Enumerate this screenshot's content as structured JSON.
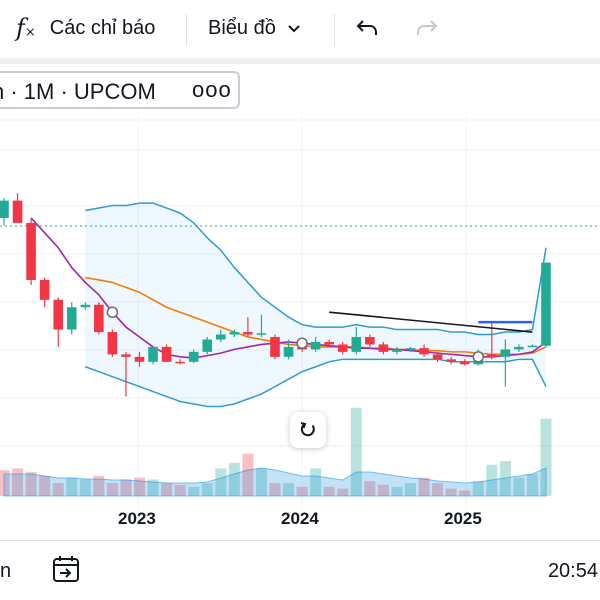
{
  "toolbar": {
    "indicators_label": "Các chỉ báo",
    "chart_type_label": "Biểu đồ"
  },
  "symbol": {
    "text": "h · 1M · UPCOM",
    "more": "ooo"
  },
  "x_axis": {
    "years": [
      "2023",
      "2024",
      "2025"
    ]
  },
  "bottom": {
    "left_text": "n",
    "time": "20:54"
  },
  "colors": {
    "up": "#22ab94",
    "down": "#f23645",
    "band": "#2e9bd6",
    "ma_fast": "#9c27b0",
    "ma_slow": "#f57c00",
    "trend": "#131722",
    "ray": "#2962ff"
  },
  "chart_data": {
    "type": "candlestick",
    "interval": "1M",
    "exchange": "UPCOM",
    "candles": [
      {
        "o": 9.8,
        "h": 10.6,
        "l": 9.5,
        "c": 10.5,
        "dir": "up"
      },
      {
        "o": 10.5,
        "h": 10.8,
        "l": 9.6,
        "c": 9.6,
        "dir": "down"
      },
      {
        "o": 9.6,
        "h": 9.8,
        "l": 7.1,
        "c": 7.3,
        "dir": "down"
      },
      {
        "o": 7.3,
        "h": 7.4,
        "l": 6.2,
        "c": 6.5,
        "dir": "down"
      },
      {
        "o": 6.5,
        "h": 6.6,
        "l": 4.6,
        "c": 5.3,
        "dir": "down"
      },
      {
        "o": 5.3,
        "h": 6.4,
        "l": 5.1,
        "c": 6.2,
        "dir": "up"
      },
      {
        "o": 6.2,
        "h": 6.4,
        "l": 6.1,
        "c": 6.3,
        "dir": "up"
      },
      {
        "o": 6.3,
        "h": 6.4,
        "l": 5.1,
        "c": 5.2,
        "dir": "down"
      },
      {
        "o": 5.2,
        "h": 5.3,
        "l": 4.2,
        "c": 4.3,
        "dir": "down"
      },
      {
        "o": 4.3,
        "h": 4.4,
        "l": 2.6,
        "c": 4.2,
        "dir": "down"
      },
      {
        "o": 4.2,
        "h": 4.4,
        "l": 3.8,
        "c": 4.0,
        "dir": "down"
      },
      {
        "o": 4.0,
        "h": 4.6,
        "l": 3.9,
        "c": 4.6,
        "dir": "up"
      },
      {
        "o": 4.6,
        "h": 4.7,
        "l": 4.0,
        "c": 4.0,
        "dir": "down"
      },
      {
        "o": 4.0,
        "h": 4.1,
        "l": 3.9,
        "c": 3.95,
        "dir": "down"
      },
      {
        "o": 4.0,
        "h": 4.5,
        "l": 3.95,
        "c": 4.4,
        "dir": "up"
      },
      {
        "o": 4.4,
        "h": 5.0,
        "l": 4.3,
        "c": 4.9,
        "dir": "up"
      },
      {
        "o": 4.9,
        "h": 5.3,
        "l": 4.8,
        "c": 5.1,
        "dir": "up"
      },
      {
        "o": 5.1,
        "h": 5.3,
        "l": 5.0,
        "c": 5.2,
        "dir": "up"
      },
      {
        "o": 5.2,
        "h": 5.8,
        "l": 5.0,
        "c": 5.1,
        "dir": "down"
      },
      {
        "o": 5.1,
        "h": 5.9,
        "l": 5.0,
        "c": 5.15,
        "dir": "up"
      },
      {
        "o": 5.0,
        "h": 5.1,
        "l": 4.1,
        "c": 4.2,
        "dir": "down"
      },
      {
        "o": 4.2,
        "h": 4.9,
        "l": 4.1,
        "c": 4.6,
        "dir": "up"
      },
      {
        "o": 4.6,
        "h": 4.7,
        "l": 4.4,
        "c": 4.5,
        "dir": "down"
      },
      {
        "o": 4.5,
        "h": 5.0,
        "l": 4.4,
        "c": 4.8,
        "dir": "up"
      },
      {
        "o": 4.8,
        "h": 4.9,
        "l": 4.6,
        "c": 4.7,
        "dir": "down"
      },
      {
        "o": 4.7,
        "h": 4.8,
        "l": 4.3,
        "c": 4.4,
        "dir": "down"
      },
      {
        "o": 4.4,
        "h": 5.4,
        "l": 4.3,
        "c": 5.0,
        "dir": "up"
      },
      {
        "o": 5.0,
        "h": 5.1,
        "l": 4.6,
        "c": 4.7,
        "dir": "down"
      },
      {
        "o": 4.7,
        "h": 4.8,
        "l": 4.3,
        "c": 4.4,
        "dir": "down"
      },
      {
        "o": 4.4,
        "h": 4.6,
        "l": 4.3,
        "c": 4.5,
        "dir": "up"
      },
      {
        "o": 4.5,
        "h": 4.6,
        "l": 4.4,
        "c": 4.55,
        "dir": "up"
      },
      {
        "o": 4.55,
        "h": 4.7,
        "l": 4.2,
        "c": 4.3,
        "dir": "down"
      },
      {
        "o": 4.3,
        "h": 4.4,
        "l": 4.0,
        "c": 4.1,
        "dir": "down"
      },
      {
        "o": 4.1,
        "h": 4.2,
        "l": 3.9,
        "c": 4.0,
        "dir": "down"
      },
      {
        "o": 4.0,
        "h": 4.1,
        "l": 3.85,
        "c": 3.9,
        "dir": "down"
      },
      {
        "o": 3.9,
        "h": 4.5,
        "l": 3.85,
        "c": 4.3,
        "dir": "up"
      },
      {
        "o": 4.3,
        "h": 5.6,
        "l": 4.1,
        "c": 4.2,
        "dir": "down"
      },
      {
        "o": 4.2,
        "h": 4.9,
        "l": 3.0,
        "c": 4.5,
        "dir": "up"
      },
      {
        "o": 4.5,
        "h": 4.7,
        "l": 4.4,
        "c": 4.6,
        "dir": "up"
      },
      {
        "o": 4.6,
        "h": 4.7,
        "l": 4.6,
        "c": 4.65,
        "dir": "up"
      },
      {
        "o": 4.65,
        "h": 8.0,
        "l": 4.6,
        "c": 8.0,
        "dir": "up"
      }
    ],
    "volumes": [
      {
        "v": 28,
        "dir": "down"
      },
      {
        "v": 30,
        "dir": "down"
      },
      {
        "v": 26,
        "dir": "down"
      },
      {
        "v": 22,
        "dir": "down"
      },
      {
        "v": 14,
        "dir": "down"
      },
      {
        "v": 20,
        "dir": "up"
      },
      {
        "v": 18,
        "dir": "up"
      },
      {
        "v": 22,
        "dir": "down"
      },
      {
        "v": 14,
        "dir": "down"
      },
      {
        "v": 18,
        "dir": "down"
      },
      {
        "v": 20,
        "dir": "down"
      },
      {
        "v": 18,
        "dir": "up"
      },
      {
        "v": 14,
        "dir": "down"
      },
      {
        "v": 12,
        "dir": "down"
      },
      {
        "v": 10,
        "dir": "up"
      },
      {
        "v": 14,
        "dir": "up"
      },
      {
        "v": 30,
        "dir": "up"
      },
      {
        "v": 36,
        "dir": "up"
      },
      {
        "v": 46,
        "dir": "down"
      },
      {
        "v": 30,
        "dir": "up"
      },
      {
        "v": 14,
        "dir": "down"
      },
      {
        "v": 14,
        "dir": "up"
      },
      {
        "v": 10,
        "dir": "down"
      },
      {
        "v": 30,
        "dir": "up"
      },
      {
        "v": 10,
        "dir": "down"
      },
      {
        "v": 8,
        "dir": "down"
      },
      {
        "v": 96,
        "dir": "up"
      },
      {
        "v": 16,
        "dir": "down"
      },
      {
        "v": 12,
        "dir": "down"
      },
      {
        "v": 10,
        "dir": "up"
      },
      {
        "v": 14,
        "dir": "up"
      },
      {
        "v": 20,
        "dir": "down"
      },
      {
        "v": 14,
        "dir": "down"
      },
      {
        "v": 8,
        "dir": "down"
      },
      {
        "v": 6,
        "dir": "down"
      },
      {
        "v": 16,
        "dir": "up"
      },
      {
        "v": 34,
        "dir": "up"
      },
      {
        "v": 38,
        "dir": "up"
      },
      {
        "v": 20,
        "dir": "up"
      },
      {
        "v": 24,
        "dir": "up"
      },
      {
        "v": 84,
        "dir": "up"
      }
    ],
    "bb_upper": [
      null,
      null,
      null,
      null,
      null,
      null,
      10.1,
      10.2,
      10.3,
      10.3,
      10.4,
      10.4,
      10.2,
      10.0,
      9.6,
      9.0,
      8.5,
      7.8,
      7.2,
      6.6,
      6.2,
      5.8,
      5.5,
      5.4,
      5.4,
      5.4,
      5.5,
      5.4,
      5.4,
      5.3,
      5.3,
      5.3,
      5.3,
      5.2,
      5.2,
      5.1,
      5.1,
      5.2,
      5.2,
      5.3,
      8.6
    ],
    "bb_lower": [
      null,
      null,
      null,
      null,
      null,
      null,
      3.8,
      3.6,
      3.4,
      3.2,
      3.0,
      2.8,
      2.6,
      2.4,
      2.3,
      2.2,
      2.2,
      2.3,
      2.5,
      2.7,
      3.0,
      3.3,
      3.6,
      3.8,
      4.0,
      4.1,
      4.1,
      4.1,
      4.1,
      4.1,
      4.1,
      4.1,
      4.1,
      4.0,
      4.0,
      4.0,
      4.0,
      4.0,
      4.1,
      4.1,
      3.0
    ],
    "ma_fast": [
      null,
      null,
      9.8,
      9.2,
      8.6,
      7.8,
      7.2,
      6.7,
      6.0,
      5.4,
      5.0,
      4.6,
      4.3,
      4.2,
      4.15,
      4.25,
      4.35,
      4.5,
      4.6,
      4.7,
      4.75,
      4.8,
      4.75,
      4.7,
      4.65,
      4.6,
      4.55,
      4.55,
      4.5,
      4.5,
      4.45,
      4.4,
      4.35,
      4.3,
      4.25,
      4.2,
      4.2,
      4.25,
      4.3,
      4.4,
      4.8
    ],
    "ma_slow": [
      null,
      null,
      null,
      null,
      null,
      null,
      7.4,
      7.3,
      7.2,
      7.0,
      6.8,
      6.5,
      6.2,
      6.0,
      5.8,
      5.6,
      5.4,
      5.2,
      5.0,
      4.9,
      4.8,
      4.7,
      4.65,
      4.6,
      4.6,
      4.6,
      4.6,
      4.55,
      4.55,
      4.5,
      4.5,
      4.45,
      4.45,
      4.4,
      4.4,
      4.35,
      4.3,
      4.3,
      4.3,
      4.35,
      4.6
    ],
    "trendline_black": {
      "from": [
        24,
        6.0
      ],
      "to": [
        39,
        5.2
      ]
    },
    "ray_blue": {
      "from": [
        35,
        5.6
      ],
      "to": [
        39,
        5.6
      ]
    }
  }
}
